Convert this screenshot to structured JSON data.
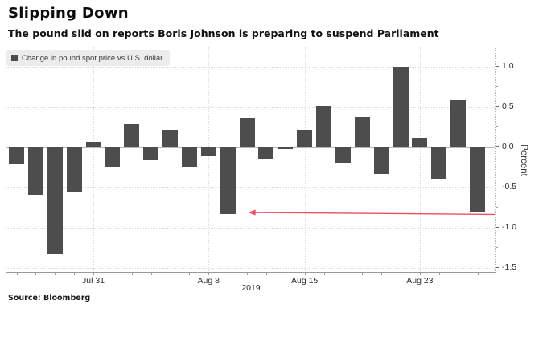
{
  "header": {
    "title": "Slipping Down",
    "subtitle": "The pound slid on reports Boris Johnson is preparing to suspend Parliament"
  },
  "chart_data": {
    "type": "bar",
    "legend": "Change in pound spot price vs U.S. dollar",
    "bar_color": "#4d4d4d",
    "values": [
      -0.21,
      -0.59,
      -1.33,
      -0.55,
      0.06,
      -0.25,
      0.29,
      -0.16,
      0.22,
      -0.24,
      -0.11,
      -0.83,
      0.36,
      -0.15,
      -0.02,
      0.22,
      0.51,
      -0.19,
      0.37,
      -0.33,
      1.0,
      0.12,
      -0.4,
      0.59,
      -0.81
    ],
    "x_ticks": [
      {
        "label": "Jul 31",
        "bar_index": 4
      },
      {
        "label": "Aug 8",
        "bar_index": 10
      },
      {
        "label": "Aug 15",
        "bar_index": 15
      },
      {
        "label": "Aug 23",
        "bar_index": 21
      }
    ],
    "x_axis_year": "2019",
    "y_ticks": [
      "1.0",
      "0.5",
      "0.0",
      "-0.5",
      "-1.0",
      "-1.5"
    ],
    "y_minor_ticks": [
      0.75,
      0.25,
      -0.25,
      -0.75,
      -1.25
    ],
    "ylabel": "Percent",
    "ylim": [
      -1.56,
      1.24
    ],
    "grid": true,
    "legend_position": "top-left",
    "annotation_arrow": {
      "description": "red arrow from bottom of last bar pointing left to the similar-sized drop after Aug 8",
      "from_bar_index": 24,
      "to_bar_index": 11,
      "color": "#ee4f5b"
    }
  },
  "footer": {
    "source": "Source: Bloomberg"
  }
}
